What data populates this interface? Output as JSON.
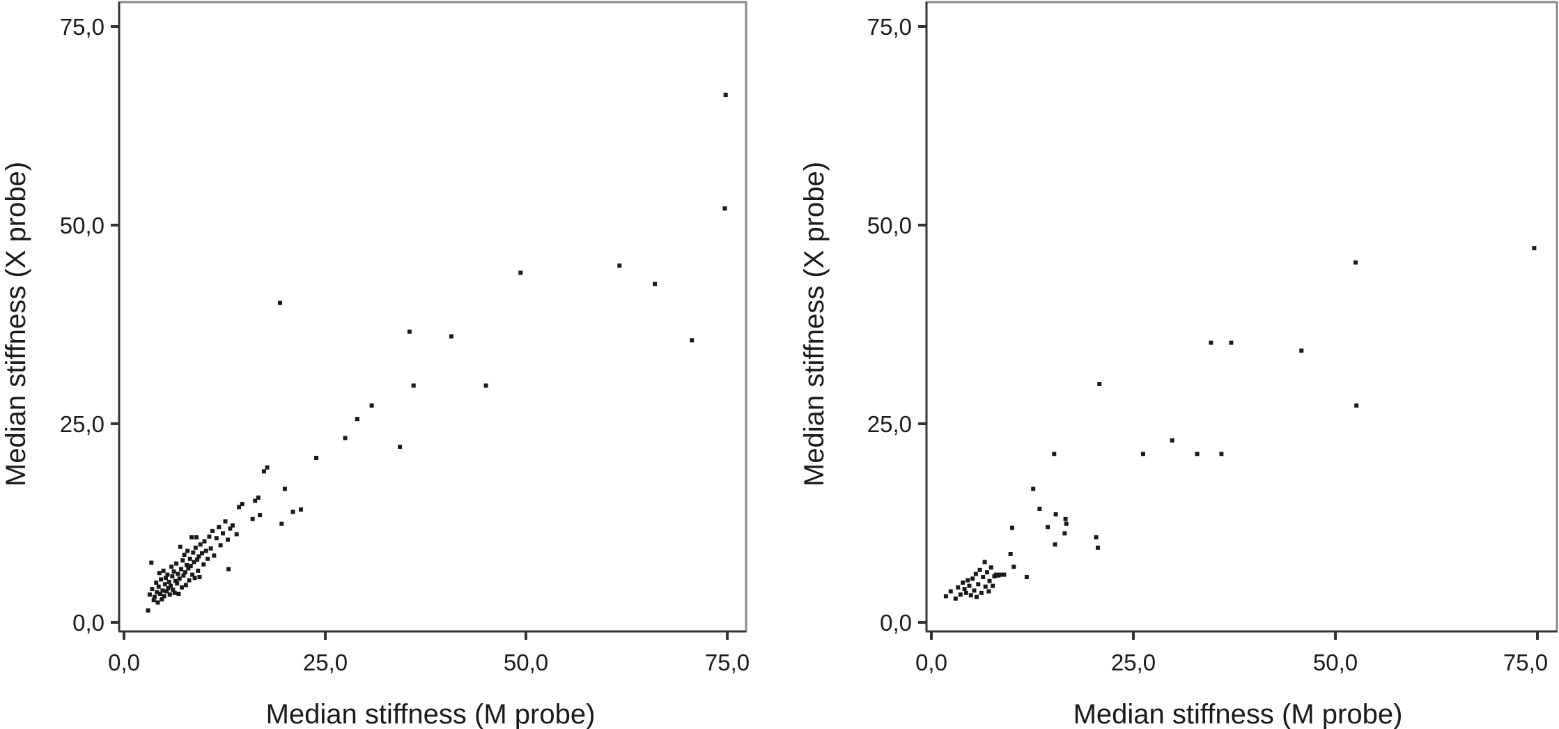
{
  "chart_data": [
    {
      "type": "scatter",
      "xlabel": "Median stiffness (M probe)",
      "ylabel": "Median stiffness (X probe)",
      "xlim": [
        0,
        75
      ],
      "ylim": [
        0,
        75
      ],
      "x_ticks": [
        "0,0",
        "25,0",
        "50,0",
        "75,0"
      ],
      "y_ticks": [
        "0,0",
        "25,0",
        "50,0",
        "75,0"
      ],
      "grid": false,
      "legend": "none",
      "point_color": "#1a1a1a",
      "points": [
        [
          3.0,
          1.5
        ],
        [
          3.2,
          3.5
        ],
        [
          3.4,
          7.5
        ],
        [
          3.5,
          4.2
        ],
        [
          3.7,
          2.8
        ],
        [
          3.8,
          3.2
        ],
        [
          4.0,
          5.0
        ],
        [
          4.1,
          3.8
        ],
        [
          4.2,
          2.5
        ],
        [
          4.3,
          4.5
        ],
        [
          4.4,
          6.2
        ],
        [
          4.5,
          3.6
        ],
        [
          4.6,
          5.4
        ],
        [
          4.7,
          2.9
        ],
        [
          4.8,
          4.0
        ],
        [
          4.9,
          6.5
        ],
        [
          5.0,
          3.3
        ],
        [
          5.1,
          4.8
        ],
        [
          5.2,
          5.6
        ],
        [
          5.3,
          3.9
        ],
        [
          5.4,
          6.0
        ],
        [
          5.5,
          4.3
        ],
        [
          5.6,
          5.1
        ],
        [
          5.7,
          3.5
        ],
        [
          5.8,
          4.6
        ],
        [
          5.9,
          7.0
        ],
        [
          6.0,
          5.8
        ],
        [
          6.1,
          4.1
        ],
        [
          6.2,
          6.4
        ],
        [
          6.3,
          3.7
        ],
        [
          6.4,
          5.2
        ],
        [
          6.5,
          7.4
        ],
        [
          6.6,
          4.9
        ],
        [
          6.7,
          6.1
        ],
        [
          6.8,
          3.6
        ],
        [
          6.9,
          5.5
        ],
        [
          7.0,
          9.5
        ],
        [
          7.1,
          6.7
        ],
        [
          7.2,
          4.4
        ],
        [
          7.3,
          7.8
        ],
        [
          7.4,
          5.9
        ],
        [
          7.5,
          8.5
        ],
        [
          7.6,
          6.3
        ],
        [
          7.7,
          4.7
        ],
        [
          7.8,
          7.2
        ],
        [
          7.9,
          9.0
        ],
        [
          8.0,
          6.8
        ],
        [
          8.1,
          5.3
        ],
        [
          8.2,
          8.0
        ],
        [
          8.3,
          7.1
        ],
        [
          8.4,
          10.7
        ],
        [
          8.5,
          6.0
        ],
        [
          8.6,
          8.8
        ],
        [
          8.7,
          7.6
        ],
        [
          8.8,
          5.6
        ],
        [
          8.9,
          9.4
        ],
        [
          9.0,
          10.7
        ],
        [
          9.1,
          7.9
        ],
        [
          9.2,
          6.5
        ],
        [
          9.3,
          8.3
        ],
        [
          9.4,
          5.7
        ],
        [
          9.5,
          9.8
        ],
        [
          9.7,
          8.7
        ],
        [
          9.9,
          7.3
        ],
        [
          10.0,
          10.2
        ],
        [
          10.2,
          9.0
        ],
        [
          10.4,
          8.0
        ],
        [
          10.6,
          10.8
        ],
        [
          10.8,
          9.3
        ],
        [
          11.0,
          11.5
        ],
        [
          11.2,
          8.4
        ],
        [
          11.5,
          10.6
        ],
        [
          11.8,
          12.0
        ],
        [
          12.0,
          9.7
        ],
        [
          12.3,
          11.2
        ],
        [
          12.6,
          12.7
        ],
        [
          12.9,
          10.4
        ],
        [
          13.0,
          6.7
        ],
        [
          13.2,
          11.8
        ],
        [
          13.5,
          12.2
        ],
        [
          14.0,
          11.1
        ],
        [
          14.3,
          14.5
        ],
        [
          14.7,
          14.9
        ],
        [
          16.0,
          13.0
        ],
        [
          16.3,
          15.3
        ],
        [
          16.7,
          15.7
        ],
        [
          16.9,
          13.5
        ],
        [
          17.4,
          19.0
        ],
        [
          17.8,
          19.5
        ],
        [
          19.4,
          40.2
        ],
        [
          19.6,
          12.4
        ],
        [
          20.0,
          16.8
        ],
        [
          21.0,
          13.9
        ],
        [
          22.0,
          14.2
        ],
        [
          23.9,
          20.7
        ],
        [
          27.5,
          23.2
        ],
        [
          29.0,
          25.6
        ],
        [
          30.8,
          27.3
        ],
        [
          34.3,
          22.1
        ],
        [
          35.5,
          36.6
        ],
        [
          36.0,
          29.8
        ],
        [
          40.7,
          36.0
        ],
        [
          45.0,
          29.8
        ],
        [
          49.3,
          44.0
        ],
        [
          61.6,
          44.9
        ],
        [
          66.0,
          42.6
        ],
        [
          70.6,
          35.5
        ],
        [
          74.7,
          52.1
        ],
        [
          74.8,
          66.4
        ]
      ]
    },
    {
      "type": "scatter",
      "xlabel": "Median stiffness (M probe)",
      "ylabel": "Median stiffness (X probe)",
      "xlim": [
        0,
        75
      ],
      "ylim": [
        0,
        75
      ],
      "x_ticks": [
        "0,0",
        "25,0",
        "50,0",
        "75,0"
      ],
      "y_ticks": [
        "0,0",
        "25,0",
        "50,0",
        "75,0"
      ],
      "grid": false,
      "legend": "none",
      "point_color": "#1a1a1a",
      "points": [
        [
          1.8,
          3.3
        ],
        [
          2.4,
          3.9
        ],
        [
          3.0,
          3.0
        ],
        [
          3.3,
          4.4
        ],
        [
          3.6,
          3.5
        ],
        [
          3.9,
          5.0
        ],
        [
          4.1,
          4.2
        ],
        [
          4.3,
          3.7
        ],
        [
          4.5,
          5.3
        ],
        [
          4.7,
          4.6
        ],
        [
          4.9,
          3.4
        ],
        [
          5.1,
          5.5
        ],
        [
          5.3,
          4.0
        ],
        [
          5.5,
          6.1
        ],
        [
          5.6,
          3.2
        ],
        [
          5.8,
          4.8
        ],
        [
          6.0,
          6.6
        ],
        [
          6.2,
          3.7
        ],
        [
          6.4,
          5.7
        ],
        [
          6.6,
          7.6
        ],
        [
          6.7,
          4.5
        ],
        [
          6.9,
          6.3
        ],
        [
          7.1,
          3.9
        ],
        [
          7.2,
          5.2
        ],
        [
          7.4,
          6.9
        ],
        [
          7.6,
          4.6
        ],
        [
          7.8,
          5.8
        ],
        [
          8.0,
          6.0
        ],
        [
          8.3,
          5.9
        ],
        [
          8.5,
          6.0
        ],
        [
          9.0,
          6.0
        ],
        [
          9.8,
          8.6
        ],
        [
          10.2,
          7.0
        ],
        [
          10.0,
          11.9
        ],
        [
          11.8,
          5.7
        ],
        [
          12.6,
          16.8
        ],
        [
          13.4,
          14.3
        ],
        [
          14.4,
          12.0
        ],
        [
          15.2,
          21.2
        ],
        [
          15.3,
          9.8
        ],
        [
          15.4,
          13.6
        ],
        [
          16.5,
          11.2
        ],
        [
          16.6,
          13.0
        ],
        [
          16.7,
          12.4
        ],
        [
          20.4,
          10.7
        ],
        [
          20.6,
          9.4
        ],
        [
          20.8,
          30.0
        ],
        [
          26.2,
          21.2
        ],
        [
          29.8,
          22.9
        ],
        [
          32.9,
          21.2
        ],
        [
          34.6,
          35.2
        ],
        [
          35.9,
          21.2
        ],
        [
          37.1,
          35.2
        ],
        [
          45.8,
          34.2
        ],
        [
          52.5,
          45.3
        ],
        [
          52.6,
          27.3
        ],
        [
          74.6,
          47.1
        ]
      ]
    }
  ]
}
